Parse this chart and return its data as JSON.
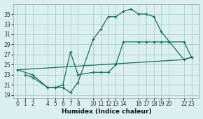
{
  "xlabel": "Humidex (Indice chaleur)",
  "background_color": "#daf0ee",
  "grid_color": "#aacfcc",
  "line_color": "#1a6b5a",
  "xlim": [
    -0.5,
    24
  ],
  "ylim": [
    18.5,
    37
  ],
  "yticks": [
    19,
    21,
    23,
    25,
    27,
    29,
    31,
    33,
    35
  ],
  "xticks": [
    0,
    1,
    2,
    4,
    5,
    6,
    7,
    8,
    10,
    11,
    12,
    13,
    14,
    16,
    17,
    18,
    19,
    20,
    22,
    23
  ],
  "line1_x": [
    1,
    2,
    4,
    5,
    6,
    7,
    8,
    10,
    11,
    12,
    13,
    14,
    15,
    16,
    17,
    18,
    19,
    22,
    23
  ],
  "line1_y": [
    23,
    22.5,
    20.5,
    20.5,
    20.5,
    19.5,
    21.5,
    30,
    32,
    34.5,
    34.5,
    35.5,
    36,
    35,
    35,
    34.5,
    31.5,
    26,
    26.5
  ],
  "line2_x": [
    0,
    2,
    4,
    5,
    6,
    7,
    8,
    10,
    11,
    12,
    13,
    14,
    16,
    17,
    18,
    19,
    20,
    22,
    23
  ],
  "line2_y": [
    24,
    23,
    20.5,
    20.5,
    21,
    27.5,
    23,
    23.5,
    23.5,
    23.5,
    25,
    29.5,
    29.5,
    29.5,
    29.5,
    29.5,
    29.5,
    29.5,
    26.5
  ],
  "line3_x": [
    0,
    22,
    23
  ],
  "line3_y": [
    24,
    26,
    26.5
  ]
}
